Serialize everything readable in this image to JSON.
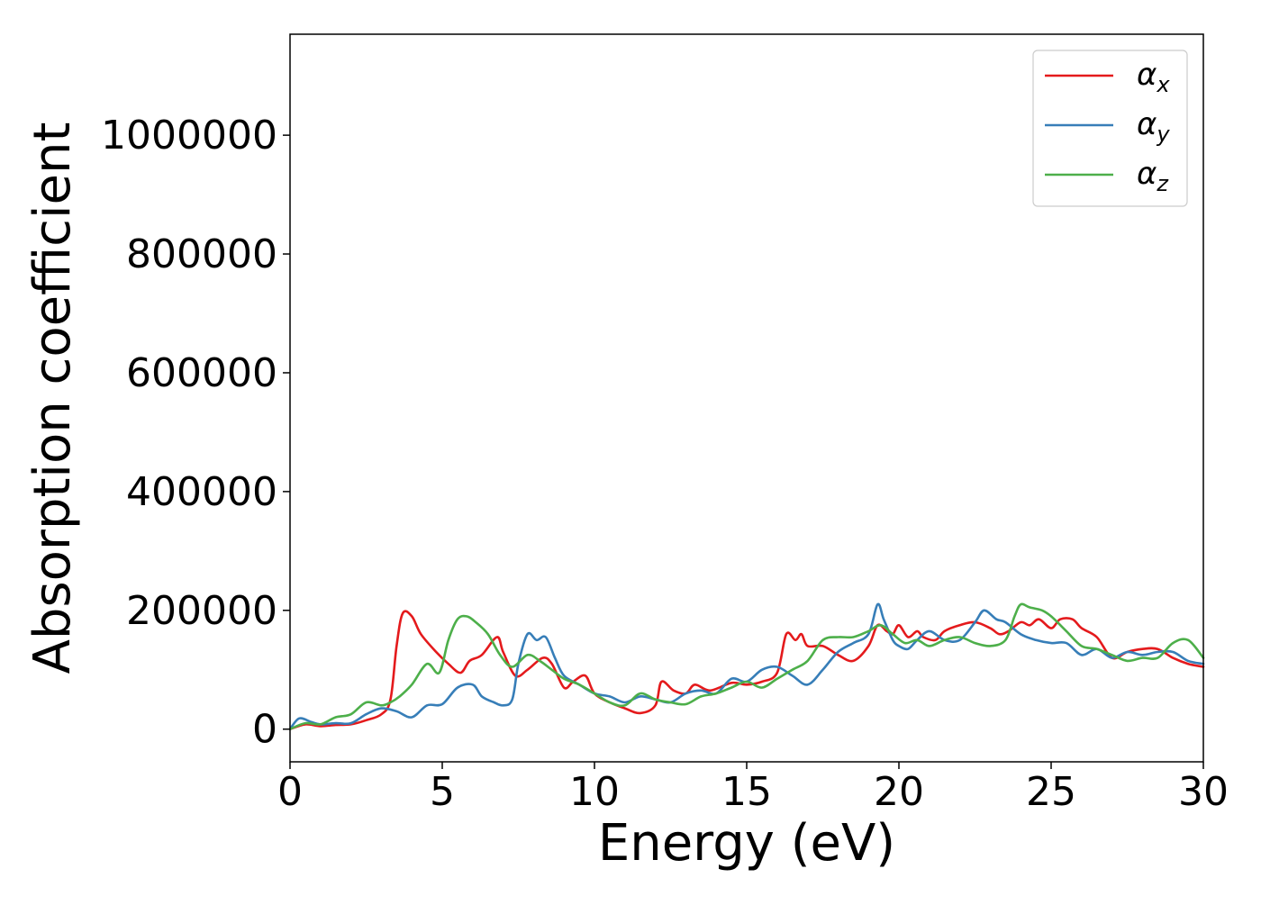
{
  "chart_data": {
    "type": "line",
    "xlabel": "Energy (eV)",
    "ylabel": "Absorption coefficient",
    "xlim": [
      0,
      30
    ],
    "ylim": [
      -55000,
      1170000
    ],
    "xticks": [
      0,
      5,
      10,
      15,
      20,
      25,
      30
    ],
    "xtick_labels": [
      "0",
      "5",
      "10",
      "15",
      "20",
      "25",
      "30"
    ],
    "yticks": [
      0,
      200000,
      400000,
      600000,
      800000,
      1000000
    ],
    "ytick_labels": [
      "0",
      "200000",
      "400000",
      "600000",
      "800000",
      "1000000"
    ],
    "grid": false,
    "legend_position": "top-right",
    "series": [
      {
        "name": "α",
        "subscript": "x",
        "color": "#e41a1c",
        "x": [
          0,
          0.5,
          1,
          1.5,
          2,
          2.5,
          3,
          3.3,
          3.5,
          3.7,
          4,
          4.3,
          4.8,
          5.2,
          5.6,
          5.9,
          6.3,
          6.8,
          7.0,
          7.4,
          7.8,
          8.3,
          8.6,
          9.0,
          9.3,
          9.7,
          10,
          10.5,
          11,
          11.5,
          12,
          12.2,
          12.6,
          13,
          13.3,
          13.8,
          14.5,
          15,
          15.5,
          16,
          16.3,
          16.6,
          16.8,
          17.0,
          17.5,
          18,
          18.5,
          19,
          19.3,
          19.6,
          19.8,
          20,
          20.3,
          20.6,
          20.8,
          21.2,
          21.5,
          22,
          22.5,
          23,
          23.3,
          23.6,
          24,
          24.3,
          24.6,
          25,
          25.3,
          25.7,
          26,
          26.5,
          27,
          27.5,
          28,
          28.5,
          29,
          29.5,
          30
        ],
        "y": [
          0,
          8000,
          5000,
          7000,
          8000,
          15000,
          25000,
          50000,
          140000,
          195000,
          190000,
          160000,
          130000,
          110000,
          95000,
          115000,
          125000,
          155000,
          130000,
          90000,
          100000,
          120000,
          110000,
          70000,
          80000,
          90000,
          60000,
          45000,
          35000,
          27000,
          40000,
          80000,
          65000,
          60000,
          75000,
          65000,
          78000,
          75000,
          80000,
          95000,
          160000,
          150000,
          160000,
          140000,
          140000,
          125000,
          115000,
          140000,
          175000,
          165000,
          160000,
          175000,
          155000,
          165000,
          155000,
          150000,
          165000,
          175000,
          180000,
          170000,
          160000,
          165000,
          180000,
          175000,
          185000,
          170000,
          185000,
          185000,
          170000,
          155000,
          120000,
          130000,
          135000,
          135000,
          120000,
          110000,
          105000
        ]
      },
      {
        "name": "α",
        "subscript": "y",
        "color": "#377eb8",
        "x": [
          0,
          0.3,
          0.7,
          1,
          1.5,
          2,
          2.5,
          3,
          3.5,
          4,
          4.5,
          5,
          5.5,
          6,
          6.3,
          6.7,
          7.0,
          7.3,
          7.5,
          7.8,
          8.1,
          8.4,
          8.7,
          9.0,
          9.5,
          10,
          10.5,
          11,
          11.5,
          12,
          12.5,
          13,
          13.5,
          14,
          14.5,
          15,
          15.5,
          16,
          16.5,
          17,
          17.5,
          18,
          18.5,
          19,
          19.3,
          19.5,
          19.8,
          20,
          20.3,
          20.6,
          21,
          21.5,
          22,
          22.5,
          22.8,
          23.2,
          23.5,
          24,
          24.5,
          25,
          25.5,
          26,
          26.5,
          27,
          27.5,
          28,
          28.5,
          29,
          29.5,
          30
        ],
        "y": [
          0,
          18000,
          12000,
          8000,
          10000,
          10000,
          25000,
          35000,
          30000,
          20000,
          40000,
          42000,
          70000,
          75000,
          55000,
          45000,
          40000,
          50000,
          110000,
          160000,
          150000,
          155000,
          120000,
          90000,
          75000,
          60000,
          55000,
          45000,
          55000,
          50000,
          45000,
          60000,
          65000,
          60000,
          85000,
          80000,
          100000,
          105000,
          90000,
          75000,
          100000,
          130000,
          145000,
          160000,
          210000,
          185000,
          150000,
          140000,
          135000,
          150000,
          165000,
          150000,
          150000,
          180000,
          200000,
          185000,
          180000,
          160000,
          150000,
          145000,
          145000,
          125000,
          135000,
          120000,
          130000,
          125000,
          130000,
          130000,
          115000,
          110000
        ]
      },
      {
        "name": "α",
        "subscript": "z",
        "color": "#4daf4a",
        "x": [
          0,
          0.5,
          1,
          1.5,
          2,
          2.5,
          3,
          3.3,
          3.6,
          4,
          4.5,
          4.9,
          5.2,
          5.5,
          5.8,
          6.1,
          6.5,
          6.9,
          7.3,
          7.8,
          8.2,
          8.6,
          9.0,
          9.5,
          10,
          10.5,
          11,
          11.5,
          12,
          12.5,
          13,
          13.5,
          14,
          14.5,
          15,
          15.5,
          16,
          16.5,
          17,
          17.5,
          18,
          18.5,
          19,
          19.4,
          19.8,
          20.2,
          20.6,
          21,
          21.5,
          22,
          22.5,
          23,
          23.5,
          23.8,
          24,
          24.3,
          24.7,
          25,
          25.5,
          26,
          26.5,
          27,
          27.5,
          28,
          28.5,
          29,
          29.5,
          30
        ],
        "y": [
          0,
          10000,
          8000,
          20000,
          25000,
          45000,
          40000,
          45000,
          55000,
          75000,
          110000,
          95000,
          150000,
          185000,
          190000,
          180000,
          160000,
          125000,
          105000,
          125000,
          115000,
          100000,
          85000,
          75000,
          60000,
          45000,
          40000,
          60000,
          50000,
          45000,
          42000,
          55000,
          60000,
          70000,
          80000,
          70000,
          85000,
          100000,
          115000,
          150000,
          155000,
          155000,
          165000,
          175000,
          160000,
          145000,
          150000,
          140000,
          150000,
          155000,
          145000,
          140000,
          150000,
          190000,
          210000,
          205000,
          200000,
          190000,
          165000,
          140000,
          135000,
          125000,
          115000,
          120000,
          120000,
          145000,
          150000,
          120000
        ]
      }
    ]
  }
}
